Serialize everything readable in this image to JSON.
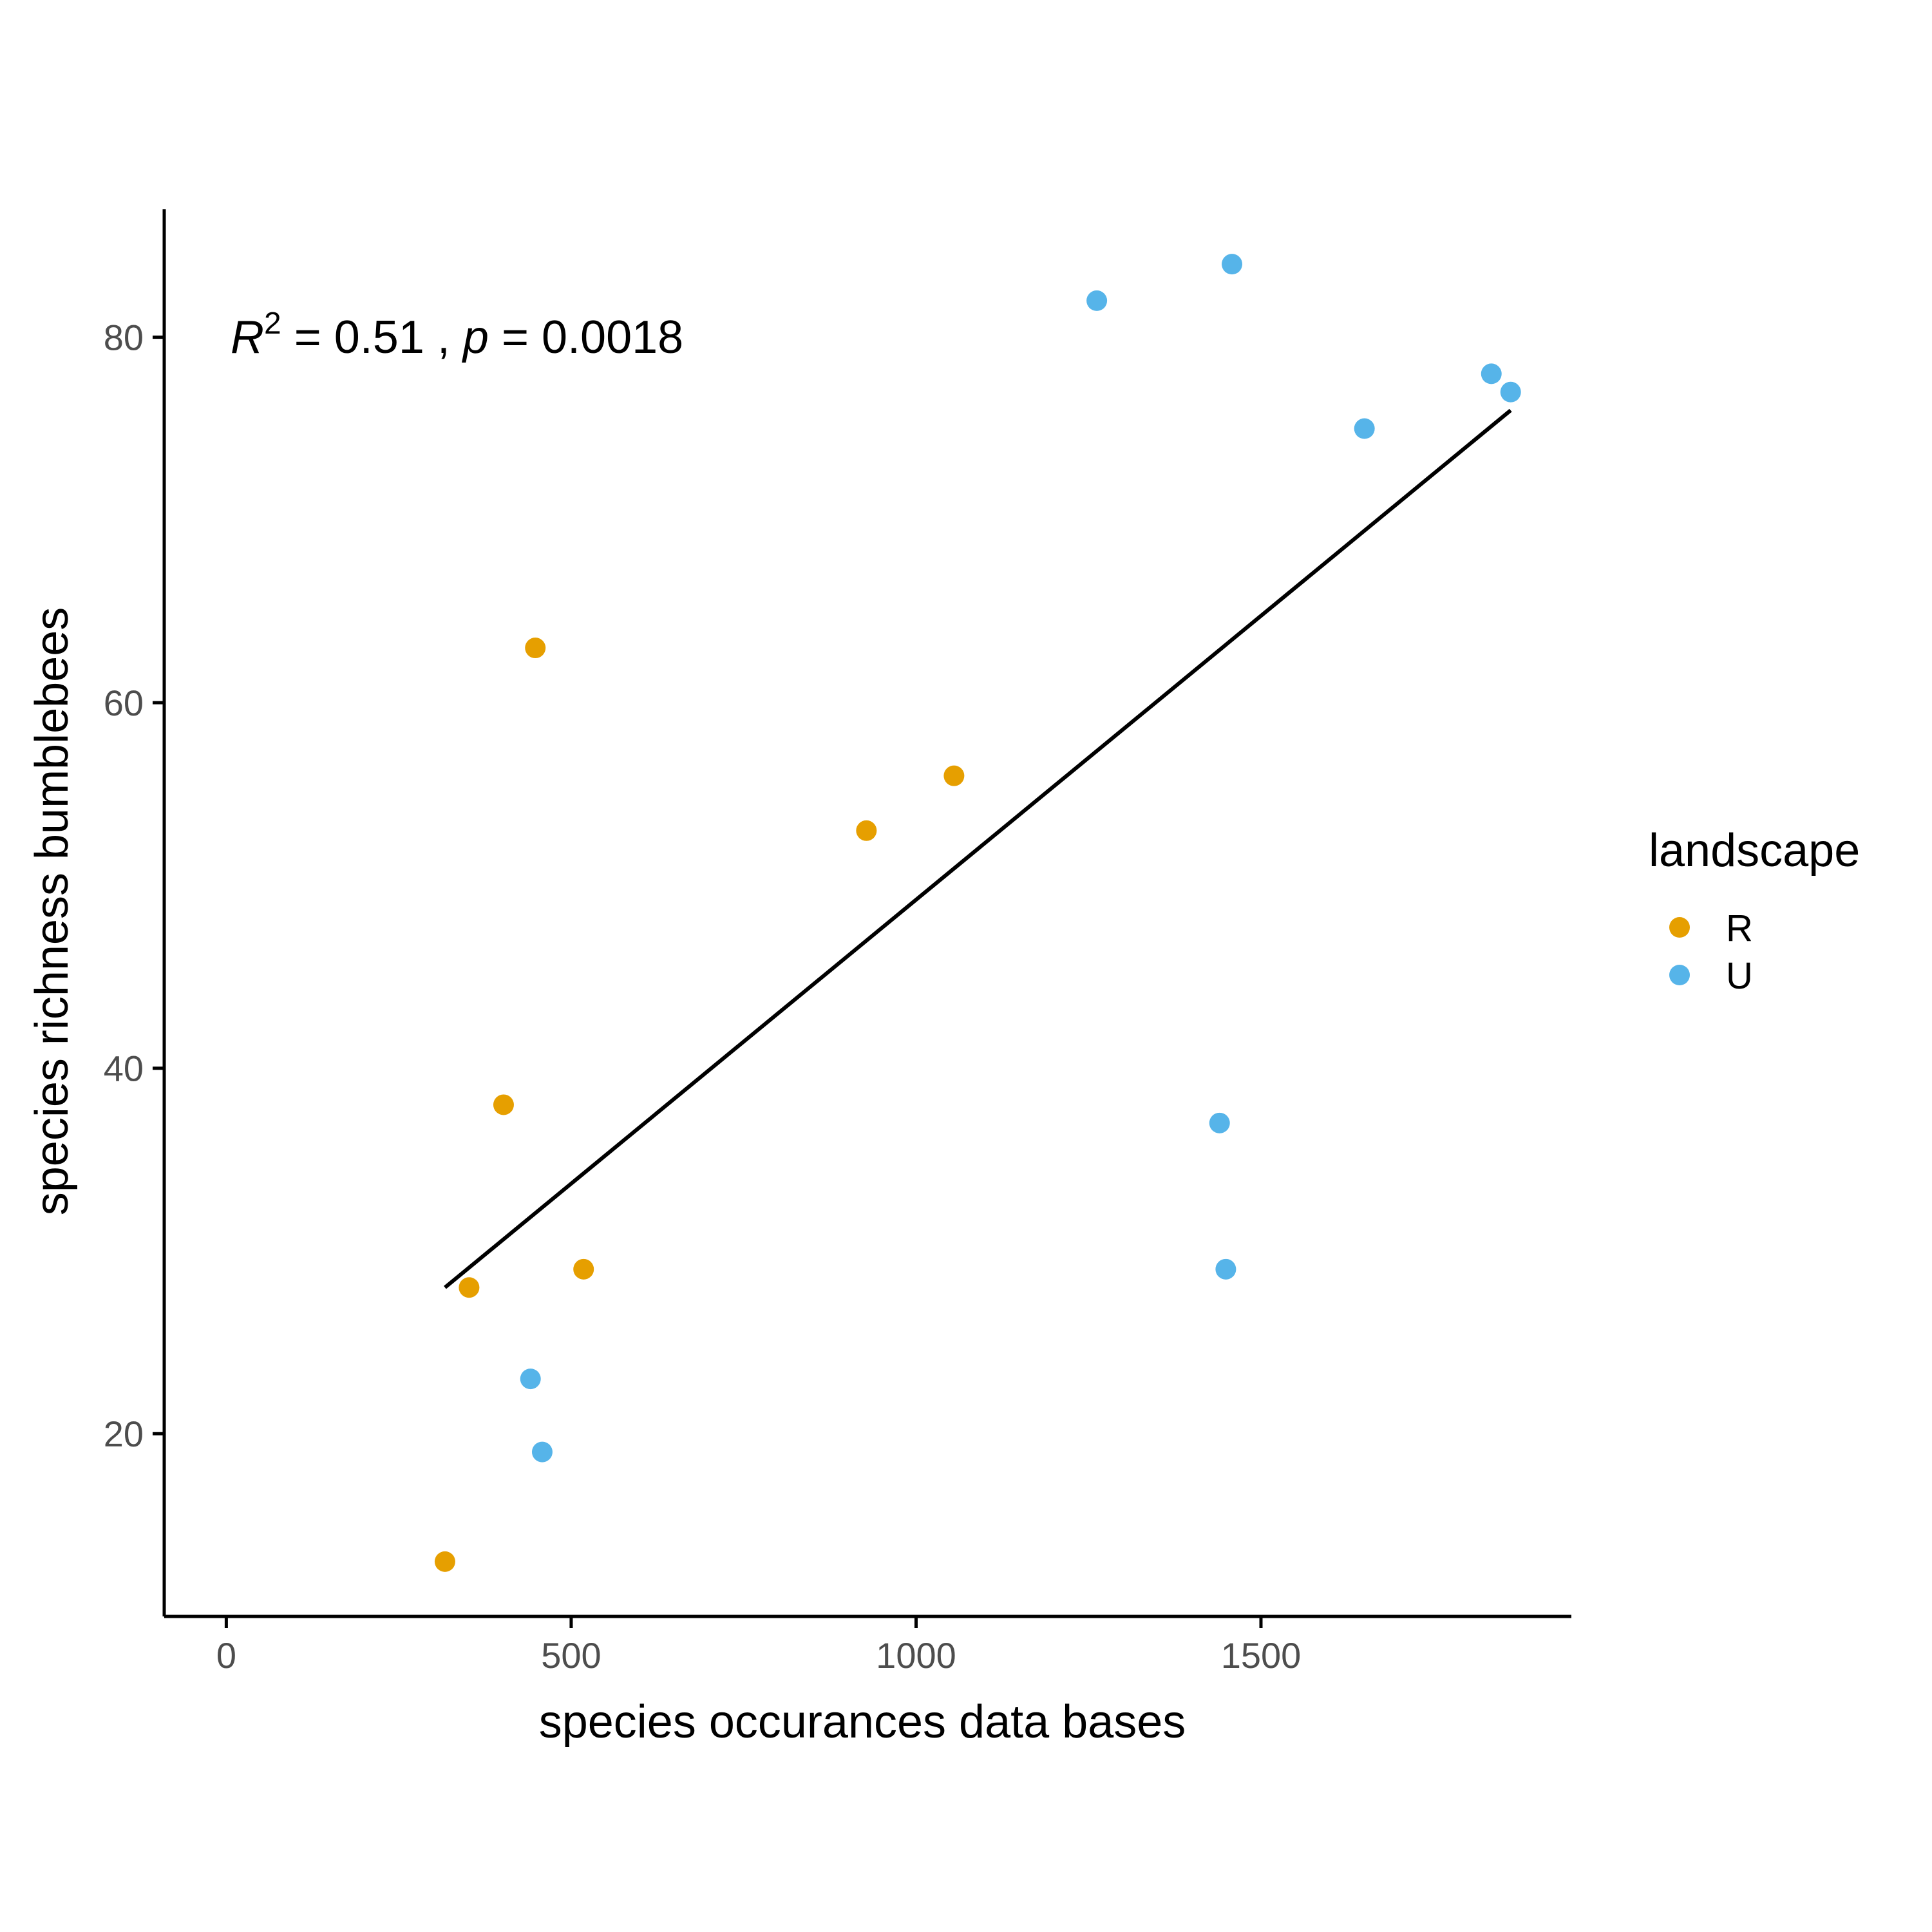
{
  "chart_data": {
    "type": "scatter",
    "xlabel": "species occurances data bases",
    "ylabel": "species richness bumblebees",
    "xlim": [
      -90,
      1950
    ],
    "ylim": [
      10,
      87
    ],
    "x_ticks": [
      0,
      500,
      1000,
      1500
    ],
    "y_ticks": [
      20,
      40,
      60,
      80
    ],
    "grid": false,
    "legend": {
      "title": "landscape",
      "position": "right"
    },
    "annotation": {
      "r2_symbol": "R",
      "r2_exp": "2",
      "r2_text": " = 0.51 , ",
      "p_symbol": "p",
      "p_text": " = 0.0018"
    },
    "fit_line": {
      "x": [
        317,
        1862
      ],
      "y": [
        28,
        76
      ]
    },
    "series": [
      {
        "name": "R",
        "color": "#E69F00",
        "points": [
          {
            "x": 317,
            "y": 13
          },
          {
            "x": 352,
            "y": 28
          },
          {
            "x": 402,
            "y": 38
          },
          {
            "x": 448,
            "y": 63
          },
          {
            "x": 518,
            "y": 29
          },
          {
            "x": 928,
            "y": 53
          },
          {
            "x": 1055,
            "y": 56
          }
        ]
      },
      {
        "name": "U",
        "color": "#56B4E9",
        "points": [
          {
            "x": 441,
            "y": 23
          },
          {
            "x": 458,
            "y": 19
          },
          {
            "x": 1262,
            "y": 82
          },
          {
            "x": 1440,
            "y": 37
          },
          {
            "x": 1449,
            "y": 29
          },
          {
            "x": 1458,
            "y": 84
          },
          {
            "x": 1650,
            "y": 75
          },
          {
            "x": 1834,
            "y": 78
          },
          {
            "x": 1862,
            "y": 77
          }
        ]
      }
    ]
  }
}
